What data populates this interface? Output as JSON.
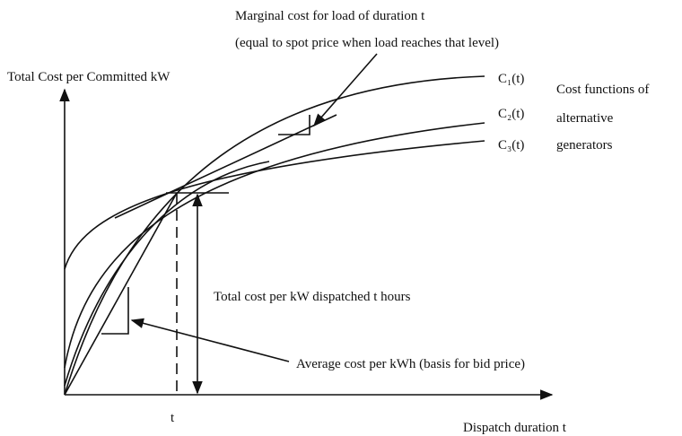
{
  "labels": {
    "marginal": "Marginal cost for load of duration t",
    "marginal_note": "(equal to spot price when load reaches that level)",
    "y_axis": "Total Cost per Committed kW",
    "curves": [
      "C₁(t)",
      "C₂(t)",
      "C₃(t)"
    ],
    "legend": [
      "Cost functions of",
      "alternative",
      "generators"
    ],
    "total_cost": "Total cost per kW dispatched t hours",
    "average": "Average cost per kWh (basis for bid price)",
    "t_mark": "t",
    "x_axis": "Dispatch duration  t"
  }
}
